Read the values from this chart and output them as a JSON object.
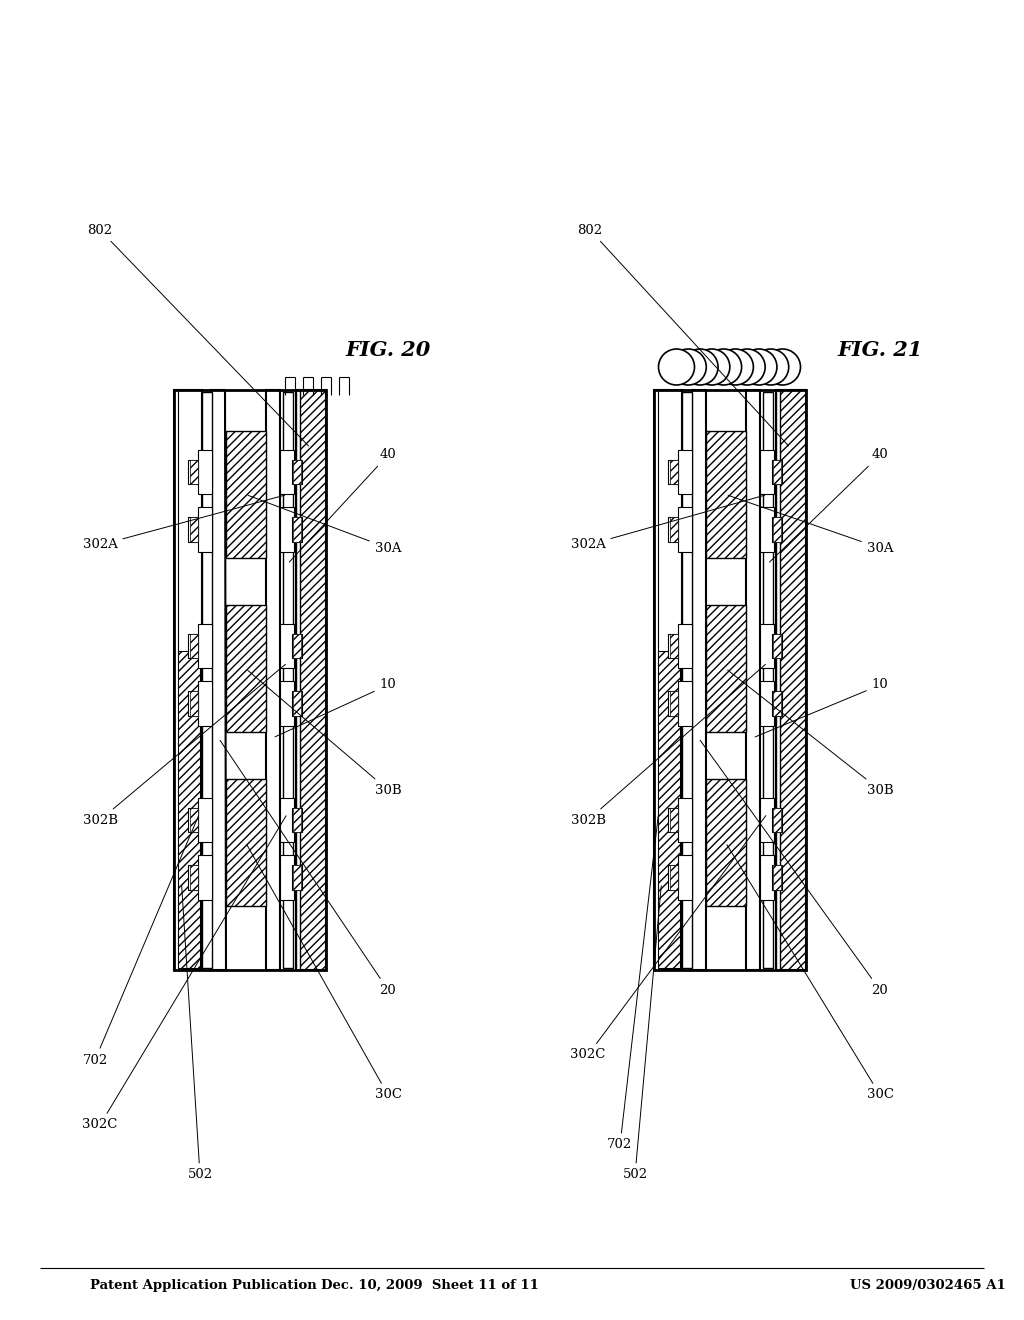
{
  "title_left": "Patent Application Publication",
  "title_mid": "Dec. 10, 2009  Sheet 11 of 11",
  "title_right": "US 2009/0302465 A1",
  "fig20_label": "FIG. 20",
  "fig21_label": "FIG. 21",
  "bg_color": "#ffffff",
  "line_color": "#000000"
}
